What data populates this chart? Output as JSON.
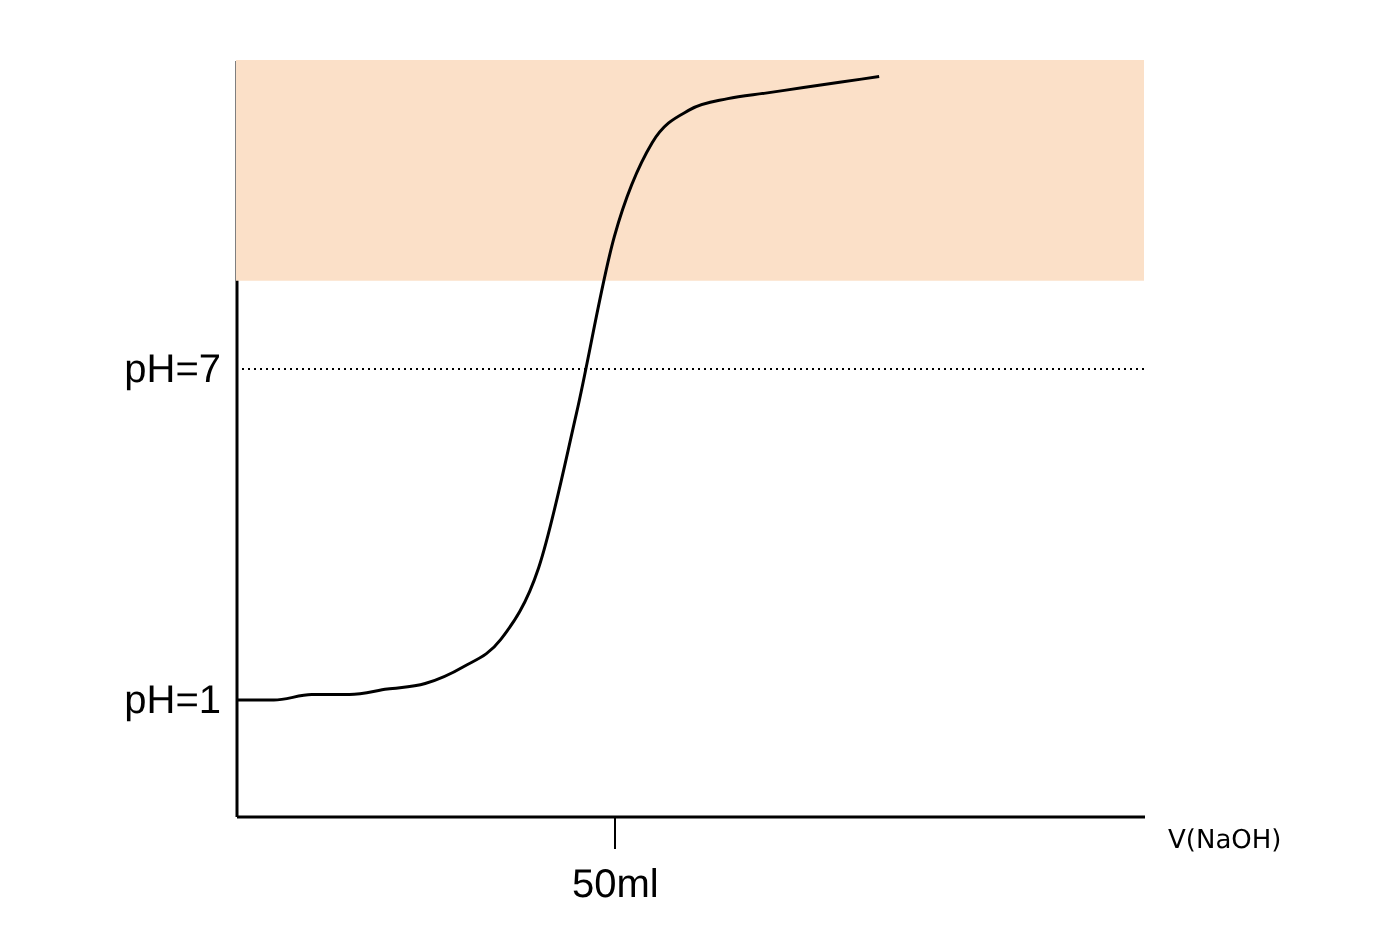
{
  "chart_data": {
    "type": "line",
    "xlabel": "V(NaOH)",
    "categories": [
      null,
      null,
      null,
      null,
      null,
      null,
      null,
      null,
      null,
      null,
      "50ml",
      null,
      null,
      null,
      null,
      null,
      null,
      null,
      null,
      null,
      null,
      null,
      null,
      null,
      null
    ],
    "series": [
      {
        "color": "#000000",
        "values": [
          1.0,
          1.0,
          1.1,
          1.1,
          1.2,
          1.3,
          1.6,
          2.1,
          3.4,
          6.2,
          9.4,
          11.1,
          11.7,
          11.9,
          12.0,
          12.1,
          12.2,
          12.3,
          null,
          null,
          null,
          null,
          null,
          null,
          null
        ]
      }
    ],
    "ylim": [
      -1.1,
      12.6
    ],
    "yticks": [
      {
        "value": 1,
        "label": "pH=1"
      },
      {
        "value": 7,
        "label": "pH=7"
      }
    ],
    "ref_lines": [
      {
        "axis": "y",
        "value": 7,
        "label": null,
        "color": "#000000",
        "line_style": "dotted"
      }
    ],
    "bands": [
      {
        "axis": "y",
        "from": 8.6,
        "to": 12.6,
        "label": null,
        "color": "#fbe0c8"
      }
    ],
    "grid": false,
    "marker": "none",
    "line_style": "solid"
  }
}
